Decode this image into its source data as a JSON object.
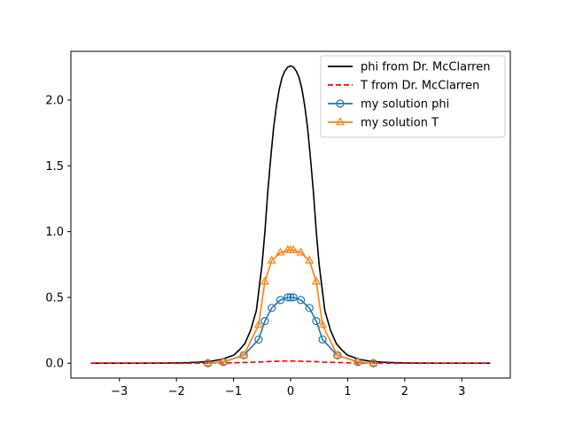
{
  "chart_data": {
    "type": "line",
    "title": "",
    "xlabel": "",
    "ylabel": "",
    "xlim": [
      -3.85,
      3.85
    ],
    "ylim": [
      -0.113,
      2.37
    ],
    "xticks": [
      -3,
      -2,
      -1,
      0,
      1,
      2,
      3
    ],
    "xtick_labels": [
      "−3",
      "−2",
      "−1",
      "0",
      "1",
      "2",
      "3"
    ],
    "yticks": [
      0.0,
      0.5,
      1.0,
      1.5,
      2.0
    ],
    "ytick_labels": [
      "0.0",
      "0.5",
      "1.0",
      "1.5",
      "2.0"
    ],
    "grid": false,
    "legend_position": "top-right",
    "series": [
      {
        "name": "phi from Dr. McClarren",
        "color": "#000000",
        "style": "solid",
        "marker": "none",
        "x": [
          -3.5,
          -3.0,
          -2.5,
          -2.0,
          -1.8,
          -1.6,
          -1.4,
          -1.2,
          -1.1,
          -1.0,
          -0.9,
          -0.8,
          -0.7,
          -0.6,
          -0.5,
          -0.45,
          -0.4,
          -0.35,
          -0.3,
          -0.25,
          -0.2,
          -0.15,
          -0.1,
          -0.05,
          0.0,
          0.05,
          0.1,
          0.15,
          0.2,
          0.25,
          0.3,
          0.35,
          0.4,
          0.45,
          0.5,
          0.6,
          0.7,
          0.8,
          0.9,
          1.0,
          1.1,
          1.2,
          1.4,
          1.6,
          1.8,
          2.0,
          2.5,
          3.0,
          3.5
        ],
        "y": [
          0.0,
          0.0,
          0.0,
          0.002,
          0.004,
          0.008,
          0.015,
          0.03,
          0.045,
          0.06,
          0.1,
          0.15,
          0.25,
          0.4,
          0.75,
          1.0,
          1.3,
          1.55,
          1.78,
          1.95,
          2.08,
          2.17,
          2.22,
          2.25,
          2.26,
          2.25,
          2.22,
          2.17,
          2.08,
          1.95,
          1.78,
          1.55,
          1.3,
          1.0,
          0.75,
          0.4,
          0.25,
          0.15,
          0.1,
          0.06,
          0.045,
          0.03,
          0.015,
          0.008,
          0.004,
          0.002,
          0.0,
          0.0,
          0.0
        ]
      },
      {
        "name": "T from Dr. McClarren",
        "color": "#ff0000",
        "style": "dashed",
        "marker": "none",
        "x": [
          -3.5,
          -2.0,
          -1.5,
          -1.0,
          -0.6,
          -0.3,
          0.0,
          0.3,
          0.6,
          1.0,
          1.5,
          2.0,
          3.5
        ],
        "y": [
          0.0,
          0.0,
          0.001,
          0.003,
          0.008,
          0.014,
          0.017,
          0.014,
          0.008,
          0.003,
          0.001,
          0.0,
          0.0
        ]
      },
      {
        "name": "my solution phi",
        "color": "#1f77b4",
        "style": "solid",
        "marker": "circle",
        "x": [
          -1.45,
          -1.18,
          -0.82,
          -0.56,
          -0.45,
          -0.33,
          -0.18,
          -0.05,
          0.0,
          0.05,
          0.18,
          0.33,
          0.45,
          0.56,
          0.82,
          1.18,
          1.45
        ],
        "y": [
          0.0,
          0.01,
          0.06,
          0.18,
          0.32,
          0.42,
          0.48,
          0.5,
          0.5,
          0.5,
          0.48,
          0.42,
          0.32,
          0.18,
          0.06,
          0.01,
          0.0
        ]
      },
      {
        "name": "my solution T",
        "color": "#ff7f0e",
        "style": "solid",
        "marker": "triangle",
        "x": [
          -1.45,
          -1.18,
          -0.82,
          -0.56,
          -0.45,
          -0.33,
          -0.18,
          -0.05,
          0.0,
          0.05,
          0.18,
          0.33,
          0.45,
          0.56,
          0.82,
          1.18,
          1.45
        ],
        "y": [
          0.0,
          0.01,
          0.06,
          0.29,
          0.62,
          0.78,
          0.84,
          0.86,
          0.86,
          0.86,
          0.84,
          0.78,
          0.62,
          0.29,
          0.06,
          0.01,
          0.0
        ]
      }
    ]
  }
}
